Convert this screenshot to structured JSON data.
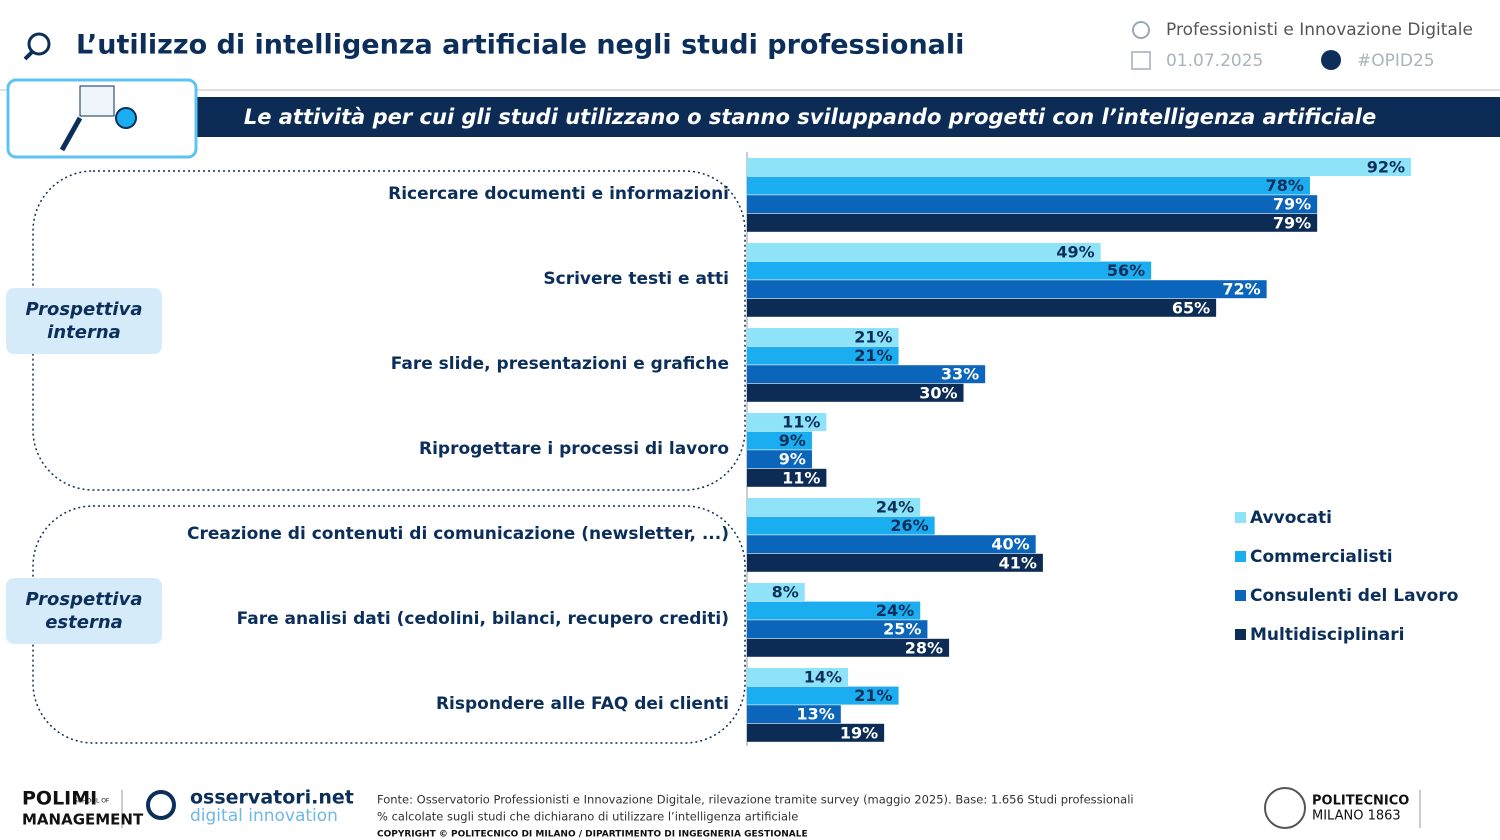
{
  "header": {
    "title": "L’utilizzo di intelligenza artificiale negli studi professionali",
    "observatory": "Professionisti e Innovazione Digitale",
    "date": "01.07.2025",
    "hashtag": "#OPID25"
  },
  "chart_data": {
    "type": "bar",
    "orientation": "horizontal",
    "title": "Le attività per cui gli studi utilizzano o stanno sviluppando progetti con l’intelligenza artificiale",
    "groups": [
      "Prospettiva interna",
      "Prospettiva esterna"
    ],
    "categories": [
      "Ricercare documenti e informazioni",
      "Scrivere testi e atti",
      "Fare slide, presentazioni e grafiche",
      "Riprogettare i processi di lavoro",
      "Creazione di contenuti di comunicazione (newsletter, ...)",
      "Fare analisi dati (cedolini, bilanci, recupero crediti)",
      "Rispondere alle FAQ dei clienti"
    ],
    "series": [
      {
        "name": "Avvocati",
        "color": "#8fe3f9",
        "label_color": "#0b2f5a",
        "values": [
          92,
          49,
          21,
          11,
          24,
          8,
          14
        ],
        "value_labels": [
          "92%",
          "49%",
          "21%",
          "11%",
          "24%",
          "8%",
          "14%"
        ]
      },
      {
        "name": "Commercialisti",
        "color": "#1aaef0",
        "label_color": "#0b2f5a",
        "values": [
          78,
          56,
          21,
          9,
          26,
          24,
          21
        ],
        "value_labels": [
          "78%",
          "56%",
          "21%",
          "9%",
          "26%",
          "24%",
          "21%"
        ]
      },
      {
        "name": "Consulenti del Lavoro",
        "color": "#0b65bb",
        "label_color": "#ffffff",
        "values": [
          79,
          72,
          33,
          9,
          40,
          25,
          13
        ],
        "value_labels": [
          "79%",
          "72%",
          "33%",
          "9%",
          "40%",
          "25%",
          "13%"
        ]
      },
      {
        "name": "Multidisciplinari",
        "color": "#0c2c55",
        "label_color": "#ffffff",
        "values": [
          79,
          65,
          30,
          11,
          41,
          28,
          19
        ],
        "value_labels": [
          "79%",
          "65%",
          "30%",
          "11%",
          "41%",
          "28%",
          "19%"
        ]
      }
    ],
    "legend": "right"
  },
  "footer": {
    "polimi": "POLIMI",
    "polimi_sub": "SCHOOL OF",
    "management": "MANAGEMENT",
    "osservatori": "osservatori.net",
    "digital": "digital innovation",
    "source": "Fonte: Osservatorio Professionisti e Innovazione Digitale, rilevazione tramite survey (maggio 2025). Base: 1.656 Studi professionali",
    "note": "% calcolate sugli studi che dichiarano di utilizzare l’intelligenza artificiale",
    "copyright": "COPYRIGHT © POLITECNICO DI MILANO / DIPARTIMENTO DI INGEGNERIA GESTIONALE",
    "politecnico": "POLITECNICO",
    "milano": "MILANO 1863"
  }
}
